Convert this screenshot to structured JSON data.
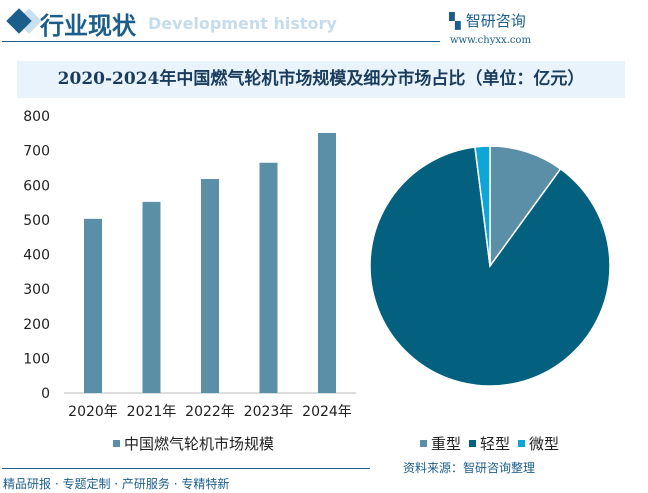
{
  "header": {
    "title": "行业现状",
    "subtitle": "Development history",
    "logo": "智研咨询",
    "url": "www.chyxx.com"
  },
  "chart_title": "2020-2024年中国燃气轮机市场规模及细分市场占比（单位：亿元）",
  "chart_data": [
    {
      "type": "bar",
      "categories": [
        "2020年",
        "2021年",
        "2022年",
        "2023年",
        "2024年"
      ],
      "series": [
        {
          "name": "中国燃气轮机市场规模",
          "values": [
            503,
            552,
            618,
            665,
            751
          ]
        }
      ],
      "ylim": [
        0,
        800
      ],
      "yticks": [
        0,
        100,
        200,
        300,
        400,
        500,
        600,
        700,
        800
      ],
      "color": "#5b8fa8",
      "legend": "bottom"
    },
    {
      "type": "pie",
      "labels": [
        "重型",
        "轻型",
        "微型"
      ],
      "values": [
        10,
        88,
        2
      ],
      "colors": [
        "#5b8fa8",
        "#04607f",
        "#0ea5d8"
      ],
      "legend": "bottom"
    }
  ],
  "footer": {
    "left": "精品研报 · 专题定制 · 产研服务 · 专精特新",
    "source": "资料来源：智研咨询整理"
  }
}
